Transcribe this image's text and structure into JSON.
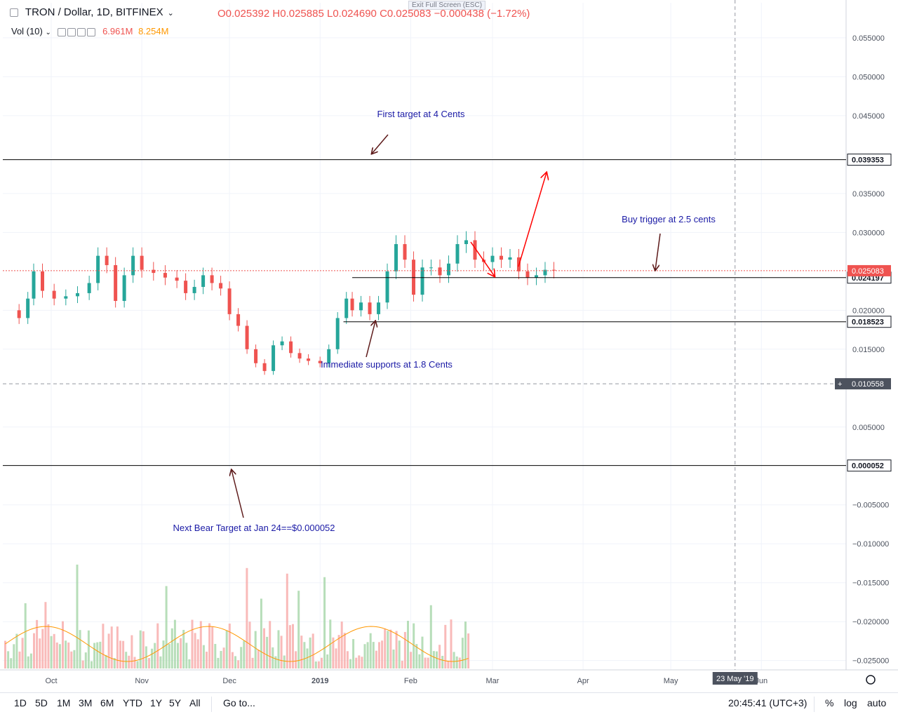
{
  "header": {
    "symbol": "TRON / Dollar, 1D, BITFINEX",
    "open": "O0.025392",
    "high": "H0.025885",
    "low": "L0.024690",
    "close": "C0.025083",
    "change": "−0.000438 (−1.72%)",
    "exit_fullscreen": "Exit Full Screen (ESC)",
    "vol_label": "Vol (10)",
    "vol_value1": "6.961M",
    "vol_value2": "8.254M"
  },
  "bottom_bar": {
    "ranges": [
      "1D",
      "5D",
      "1M",
      "3M",
      "6M",
      "YTD",
      "1Y",
      "5Y",
      "All"
    ],
    "goto": "Go to...",
    "clock": "20:45:41 (UTC+3)",
    "percent": "%",
    "log": "log",
    "auto": "auto"
  },
  "colors": {
    "up": "#26a69a",
    "down": "#ef5350",
    "annotation": "#1a1aa6",
    "arrow_dark": "#5d1a1a",
    "arrow_red": "#ff0000",
    "price_badge": "#ef5350",
    "level_badge": "#131722"
  },
  "chart_data": {
    "type": "candlestick",
    "title": "TRON / Dollar, 1D, BITFINEX",
    "y_ticks": [
      "0.055000",
      "0.050000",
      "0.045000",
      "0.035000",
      "0.030000",
      "0.020000",
      "0.015000",
      "0.005000",
      "−0.005000",
      "−0.010000",
      "−0.015000",
      "−0.020000",
      "−0.025000"
    ],
    "ylim": [
      -0.0262,
      0.0595
    ],
    "x_ticks": [
      {
        "label": "Oct",
        "date": "2018-10-01"
      },
      {
        "label": "Nov",
        "date": "2018-11-01"
      },
      {
        "label": "Dec",
        "date": "2018-12-01"
      },
      {
        "label": "2019",
        "date": "2019-01-01"
      },
      {
        "label": "Feb",
        "date": "2019-02-01"
      },
      {
        "label": "Mar",
        "date": "2019-03-01"
      },
      {
        "label": "Apr",
        "date": "2019-04-01"
      },
      {
        "label": "May",
        "date": "2019-05-01"
      },
      {
        "label": "Jun",
        "date": "2019-06-01"
      }
    ],
    "crosshair_date_label": "23 May '19",
    "crosshair_price_label": "0.010558",
    "last_price_label": "0.025083",
    "last_price": 0.025083,
    "crosshair_price": 0.010558,
    "crosshair_date": "2019-05-23",
    "levels": [
      {
        "label": "0.039353",
        "value": 0.039353
      },
      {
        "label": "0.024197",
        "value": 0.024197
      },
      {
        "label": "0.018523",
        "value": 0.018523
      },
      {
        "label": "0.000052",
        "value": 5.2e-05
      }
    ],
    "annotations": [
      {
        "text": "First target at 4 Cents"
      },
      {
        "text": "Buy trigger at 2.5 cents"
      },
      {
        "text": "Immediate supports at 1.8 Cents"
      },
      {
        "text": "Next Bear Target at Jan 24==$0.000052"
      }
    ],
    "series_note": "daily close",
    "closes": [
      [
        "2018-09-17",
        0.02
      ],
      [
        "2018-09-20",
        0.019
      ],
      [
        "2018-09-23",
        0.0215
      ],
      [
        "2018-09-25",
        0.025
      ],
      [
        "2018-09-28",
        0.0225
      ],
      [
        "2018-10-02",
        0.0215
      ],
      [
        "2018-10-06",
        0.0218
      ],
      [
        "2018-10-10",
        0.0222
      ],
      [
        "2018-10-14",
        0.0235
      ],
      [
        "2018-10-17",
        0.027
      ],
      [
        "2018-10-20",
        0.0258
      ],
      [
        "2018-10-23",
        0.0212
      ],
      [
        "2018-10-26",
        0.0245
      ],
      [
        "2018-10-29",
        0.027
      ],
      [
        "2018-11-01",
        0.0252
      ],
      [
        "2018-11-05",
        0.0248
      ],
      [
        "2018-11-09",
        0.0242
      ],
      [
        "2018-11-13",
        0.0238
      ],
      [
        "2018-11-16",
        0.0222
      ],
      [
        "2018-11-19",
        0.023
      ],
      [
        "2018-11-22",
        0.0245
      ],
      [
        "2018-11-25",
        0.0235
      ],
      [
        "2018-11-28",
        0.0228
      ],
      [
        "2018-12-01",
        0.0195
      ],
      [
        "2018-12-04",
        0.018
      ],
      [
        "2018-12-07",
        0.015
      ],
      [
        "2018-12-10",
        0.0132
      ],
      [
        "2018-12-13",
        0.0122
      ],
      [
        "2018-12-16",
        0.0155
      ],
      [
        "2018-12-19",
        0.016
      ],
      [
        "2018-12-22",
        0.0145
      ],
      [
        "2018-12-25",
        0.0138
      ],
      [
        "2018-12-28",
        0.0135
      ],
      [
        "2019-01-01",
        0.0132
      ],
      [
        "2019-01-04",
        0.015
      ],
      [
        "2019-01-07",
        0.019
      ],
      [
        "2019-01-10",
        0.0215
      ],
      [
        "2019-01-12",
        0.02
      ],
      [
        "2019-01-15",
        0.021
      ],
      [
        "2019-01-18",
        0.0195
      ],
      [
        "2019-01-21",
        0.021
      ],
      [
        "2019-01-24",
        0.025
      ],
      [
        "2019-01-27",
        0.0285
      ],
      [
        "2019-01-30",
        0.0265
      ],
      [
        "2019-02-02",
        0.022
      ],
      [
        "2019-02-05",
        0.0255
      ],
      [
        "2019-02-08",
        0.0255
      ],
      [
        "2019-02-11",
        0.0245
      ],
      [
        "2019-02-14",
        0.026
      ],
      [
        "2019-02-17",
        0.0285
      ],
      [
        "2019-02-20",
        0.029
      ],
      [
        "2019-02-23",
        0.0265
      ],
      [
        "2019-02-26",
        0.0262
      ],
      [
        "2019-03-01",
        0.027
      ],
      [
        "2019-03-04",
        0.0265
      ],
      [
        "2019-03-07",
        0.0268
      ],
      [
        "2019-03-10",
        0.025
      ],
      [
        "2019-03-13",
        0.0242
      ],
      [
        "2019-03-16",
        0.0245
      ],
      [
        "2019-03-19",
        0.0252
      ],
      [
        "2019-03-22",
        0.0251
      ]
    ]
  }
}
